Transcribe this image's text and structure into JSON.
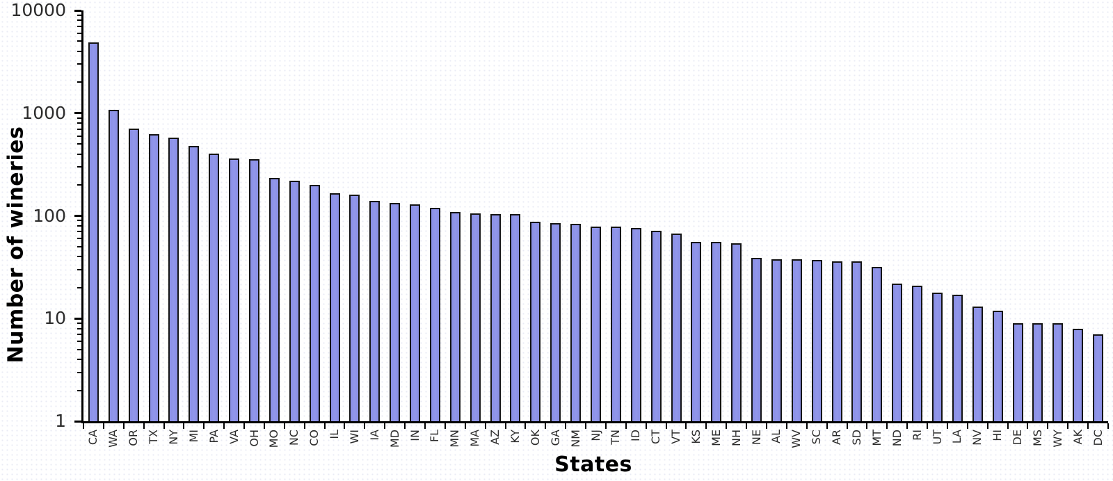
{
  "chart_data": {
    "type": "bar",
    "title": "",
    "xlabel": "States",
    "ylabel": "Number of wineries",
    "y_scale": "log",
    "ylim": [
      1,
      10000
    ],
    "y_ticks": [
      10000,
      1000,
      100,
      10,
      1
    ],
    "y_tick_labels": [
      "10000",
      "1000",
      "100",
      "10",
      "1"
    ],
    "grid": false,
    "legend_position": "none",
    "bar_color": "#9196EA",
    "bar_color_edge_gradient": "#8a8fe4",
    "bar_border_color": "#141414",
    "axis_color": "#000000",
    "categories": [
      "CA",
      "WA",
      "OR",
      "TX",
      "NY",
      "MI",
      "PA",
      "VA",
      "OH",
      "MO",
      "NC",
      "CO",
      "IL",
      "WI",
      "IA",
      "MD",
      "IN",
      "FL",
      "MN",
      "MA",
      "AZ",
      "KY",
      "OK",
      "GA",
      "NM",
      "NJ",
      "TN",
      "ID",
      "CT",
      "VT",
      "KS",
      "ME",
      "NH",
      "NE",
      "AL",
      "WV",
      "SC",
      "AR",
      "SD",
      "MT",
      "ND",
      "RI",
      "UT",
      "LA",
      "NV",
      "HI",
      "DE",
      "MS",
      "WY",
      "AK",
      "DC"
    ],
    "values": [
      4900,
      1080,
      710,
      620,
      580,
      480,
      405,
      360,
      355,
      235,
      220,
      200,
      165,
      160,
      140,
      134,
      130,
      119,
      109,
      106,
      104,
      104,
      88,
      85,
      84,
      79,
      79,
      76,
      71,
      67,
      56,
      56,
      54,
      39,
      38,
      38,
      37,
      36,
      36,
      32,
      22,
      21,
      18,
      17,
      13,
      12,
      9,
      9,
      9,
      8,
      7
    ]
  }
}
